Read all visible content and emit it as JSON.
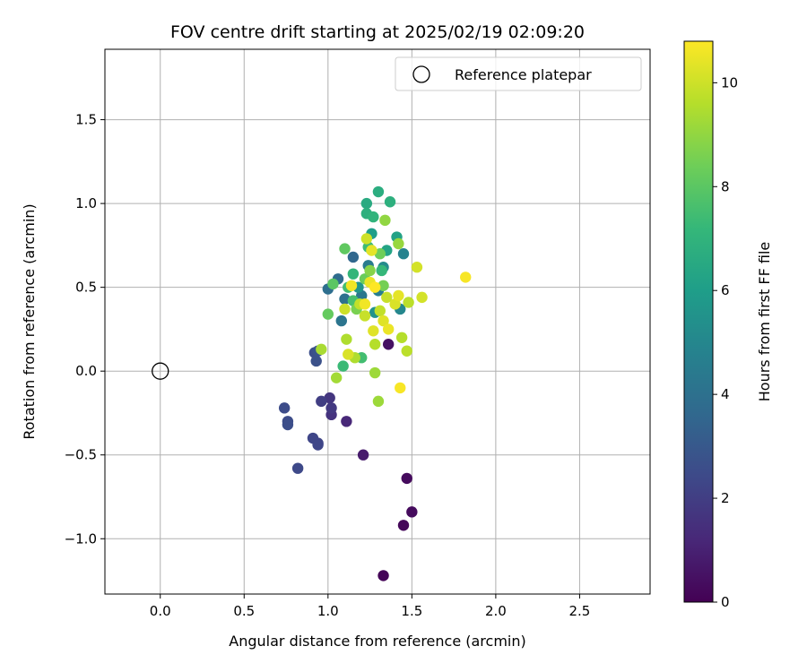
{
  "chart_data": {
    "type": "scatter",
    "title": "FOV centre drift starting at 2025/02/19 02:09:20",
    "xlabel": "Angular distance from reference (arcmin)",
    "ylabel": "Rotation from reference (arcmin)",
    "xlim": [
      -0.33,
      2.92
    ],
    "ylim": [
      -1.33,
      1.92
    ],
    "xticks": [
      0.0,
      0.5,
      1.0,
      1.5,
      2.0,
      2.5
    ],
    "xtick_labels": [
      "0.0",
      "0.5",
      "1.0",
      "1.5",
      "2.0",
      "2.5"
    ],
    "yticks": [
      -1.0,
      -0.5,
      0.0,
      0.5,
      1.0,
      1.5
    ],
    "ytick_labels": [
      "−1.0",
      "−0.5",
      "0.0",
      "0.5",
      "1.0",
      "1.5"
    ],
    "grid": true,
    "legend": {
      "placement": "top-right",
      "entries": [
        "Reference platepar"
      ]
    },
    "reference_point": {
      "label": "Reference platepar",
      "x": 0.0,
      "y": 0.0,
      "marker": "open-circle"
    },
    "colorbar": {
      "label": "Hours from first FF file",
      "colormap": "viridis",
      "range": [
        0,
        10.8
      ],
      "ticks": [
        0,
        2,
        4,
        6,
        8,
        10
      ],
      "tick_labels": [
        "0",
        "2",
        "4",
        "6",
        "8",
        "10"
      ]
    },
    "series": [
      {
        "columns": [
          "x",
          "y",
          "hours"
        ],
        "points": [
          [
            1.33,
            -1.22,
            0.1
          ],
          [
            1.45,
            -0.92,
            0.2
          ],
          [
            1.5,
            -0.84,
            0.3
          ],
          [
            1.47,
            -0.64,
            0.3
          ],
          [
            1.36,
            0.16,
            0.5
          ],
          [
            1.21,
            -0.5,
            0.8
          ],
          [
            1.11,
            -0.3,
            1.2
          ],
          [
            1.02,
            -0.26,
            1.6
          ],
          [
            1.01,
            -0.16,
            1.7
          ],
          [
            1.02,
            -0.22,
            1.8
          ],
          [
            0.96,
            -0.18,
            2.0
          ],
          [
            0.94,
            -0.43,
            2.2
          ],
          [
            0.91,
            -0.4,
            2.3
          ],
          [
            0.94,
            -0.44,
            2.3
          ],
          [
            0.82,
            -0.58,
            2.4
          ],
          [
            0.74,
            -0.22,
            2.5
          ],
          [
            0.76,
            -0.3,
            2.5
          ],
          [
            0.76,
            -0.32,
            2.6
          ],
          [
            0.92,
            0.11,
            2.6
          ],
          [
            0.93,
            0.06,
            2.7
          ],
          [
            0.94,
            0.12,
            2.8
          ],
          [
            1.15,
            0.68,
            3.6
          ],
          [
            1.06,
            0.55,
            3.8
          ],
          [
            1.0,
            0.49,
            3.9
          ],
          [
            1.1,
            0.43,
            4.0
          ],
          [
            1.08,
            0.3,
            4.2
          ],
          [
            1.2,
            0.45,
            4.3
          ],
          [
            1.24,
            0.63,
            4.5
          ],
          [
            1.3,
            0.48,
            4.6
          ],
          [
            1.45,
            0.7,
            4.8
          ],
          [
            1.43,
            0.37,
            5.0
          ],
          [
            1.33,
            0.62,
            5.2
          ],
          [
            1.28,
            0.35,
            5.5
          ],
          [
            1.18,
            0.5,
            5.6
          ],
          [
            1.26,
            0.82,
            6.0
          ],
          [
            1.41,
            0.8,
            6.2
          ],
          [
            1.35,
            0.72,
            6.3
          ],
          [
            1.23,
            1.0,
            6.6
          ],
          [
            1.3,
            1.07,
            6.7
          ],
          [
            1.37,
            1.01,
            6.8
          ],
          [
            1.23,
            0.94,
            6.8
          ],
          [
            1.27,
            0.92,
            7.0
          ],
          [
            1.15,
            0.58,
            7.1
          ],
          [
            1.32,
            0.6,
            7.2
          ],
          [
            1.24,
            0.74,
            7.4
          ],
          [
            1.09,
            0.03,
            7.3
          ],
          [
            1.2,
            0.08,
            7.5
          ],
          [
            1.12,
            0.5,
            7.5
          ],
          [
            1.15,
            0.42,
            7.6
          ],
          [
            1.03,
            0.52,
            8.0
          ],
          [
            1.1,
            0.73,
            8.1
          ],
          [
            1.0,
            0.34,
            8.2
          ],
          [
            1.22,
            0.55,
            8.3
          ],
          [
            1.31,
            0.7,
            8.4
          ],
          [
            1.33,
            0.51,
            8.5
          ],
          [
            1.17,
            0.37,
            8.6
          ],
          [
            1.25,
            0.6,
            8.8
          ],
          [
            1.34,
            0.9,
            9.0
          ],
          [
            1.42,
            0.76,
            9.1
          ],
          [
            1.3,
            -0.18,
            9.2
          ],
          [
            1.28,
            -0.01,
            9.2
          ],
          [
            1.05,
            -0.04,
            9.3
          ],
          [
            0.96,
            0.13,
            9.4
          ],
          [
            1.11,
            0.19,
            9.5
          ],
          [
            1.16,
            0.08,
            9.5
          ],
          [
            1.28,
            0.16,
            9.6
          ],
          [
            1.44,
            0.2,
            9.6
          ],
          [
            1.47,
            0.12,
            9.7
          ],
          [
            1.48,
            0.41,
            9.7
          ],
          [
            1.31,
            0.36,
            9.8
          ],
          [
            1.19,
            0.4,
            9.8
          ],
          [
            1.35,
            0.44,
            9.9
          ],
          [
            1.22,
            0.33,
            9.9
          ],
          [
            1.1,
            0.37,
            10.0
          ],
          [
            1.23,
            0.79,
            10.0
          ],
          [
            1.53,
            0.62,
            10.1
          ],
          [
            1.56,
            0.44,
            10.1
          ],
          [
            1.4,
            0.4,
            10.2
          ],
          [
            1.12,
            0.1,
            10.2
          ],
          [
            1.27,
            0.24,
            10.3
          ],
          [
            1.33,
            0.3,
            10.3
          ],
          [
            1.42,
            0.45,
            10.4
          ],
          [
            1.26,
            0.72,
            10.4
          ],
          [
            1.25,
            0.53,
            10.5
          ],
          [
            1.36,
            0.25,
            10.5
          ],
          [
            1.22,
            0.4,
            10.6
          ],
          [
            1.14,
            0.51,
            10.6
          ],
          [
            1.43,
            -0.1,
            10.7
          ],
          [
            1.82,
            0.56,
            10.7
          ],
          [
            1.28,
            0.5,
            10.8
          ]
        ]
      }
    ]
  }
}
